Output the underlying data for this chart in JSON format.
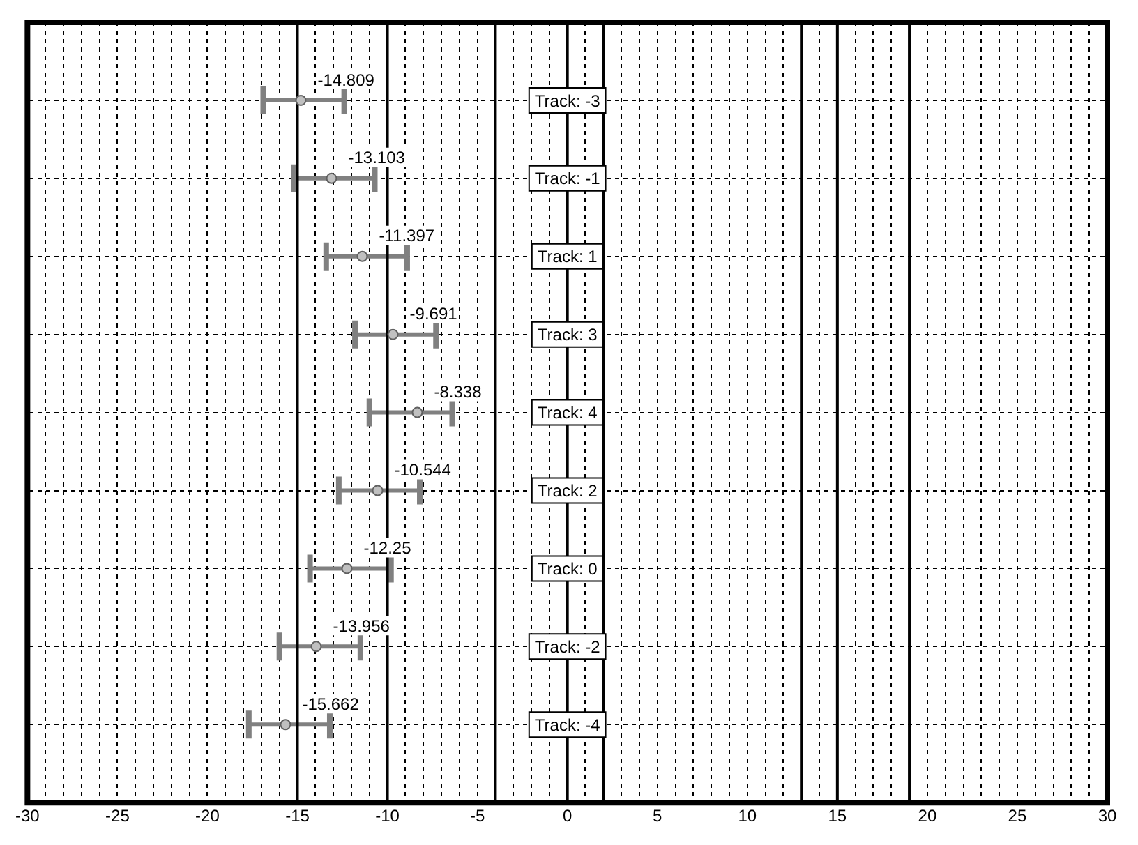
{
  "chart_data": {
    "type": "scatter",
    "orientation": "horizontal",
    "categories": [
      "Track: -3",
      "Track: -1",
      "Track: 1",
      "Track: 3",
      "Track: 4",
      "Track: 2",
      "Track: 0",
      "Track: -2",
      "Track: -4"
    ],
    "values": [
      -14.809,
      -13.103,
      -11.397,
      -9.691,
      -8.338,
      -10.544,
      -12.25,
      -13.956,
      -15.662
    ],
    "errors": [
      [
        -16.9,
        -12.4
      ],
      [
        -15.2,
        -10.7
      ],
      [
        -13.4,
        -8.9
      ],
      [
        -11.8,
        -7.3
      ],
      [
        -11.0,
        -6.4
      ],
      [
        -12.7,
        -8.2
      ],
      [
        -14.3,
        -9.8
      ],
      [
        -16.0,
        -11.5
      ],
      [
        -17.7,
        -13.2
      ]
    ],
    "color": "#c0c0c0",
    "marker": "circle",
    "data_labels": true,
    "grid": true,
    "legend": false,
    "xlim": [
      -30,
      30
    ],
    "xticks": [
      -30,
      {
        "value": -29,
        "label": null
      },
      {
        "value": -28,
        "label": null
      },
      {
        "value": -27,
        "label": null
      },
      {
        "value": -26,
        "label": null
      },
      -25,
      {
        "value": -24,
        "label": null
      },
      {
        "value": -23,
        "label": null
      },
      {
        "value": -22,
        "label": null
      },
      {
        "value": -21,
        "label": null
      },
      -20,
      {
        "value": -19,
        "label": null
      },
      {
        "value": -18,
        "label": null
      },
      {
        "value": -17,
        "label": null
      },
      {
        "value": -16,
        "label": null
      },
      -15,
      {
        "value": -14,
        "label": null
      },
      {
        "value": -13,
        "label": null
      },
      {
        "value": -12,
        "label": null
      },
      {
        "value": -11,
        "label": null
      },
      -10,
      {
        "value": -9,
        "label": null
      },
      {
        "value": -8,
        "label": null
      },
      {
        "value": -7,
        "label": null
      },
      {
        "value": -6,
        "label": null
      },
      -5,
      {
        "value": -4,
        "label": null
      },
      {
        "value": -3,
        "label": null
      },
      {
        "value": -2,
        "label": null
      },
      {
        "value": -1,
        "label": null
      },
      0,
      {
        "value": 1,
        "label": null
      },
      {
        "value": 2,
        "label": null
      },
      {
        "value": 3,
        "label": null
      },
      {
        "value": 4,
        "label": null
      },
      5,
      {
        "value": 6,
        "label": null
      },
      {
        "value": 7,
        "label": null
      },
      {
        "value": 8,
        "label": null
      },
      {
        "value": 9,
        "label": null
      },
      10,
      {
        "value": 11,
        "label": null
      },
      {
        "value": 12,
        "label": null
      },
      {
        "value": 13,
        "label": null
      },
      {
        "value": 14,
        "label": null
      },
      15,
      {
        "value": 16,
        "label": null
      },
      {
        "value": 17,
        "label": null
      },
      {
        "value": 18,
        "label": null
      },
      {
        "value": 19,
        "label": null
      },
      20,
      {
        "value": 21,
        "label": null
      },
      {
        "value": 22,
        "label": null
      },
      {
        "value": 23,
        "label": null
      },
      {
        "value": 24,
        "label": null
      },
      25,
      {
        "value": 26,
        "label": null
      },
      {
        "value": 27,
        "label": null
      },
      {
        "value": 28,
        "label": null
      },
      {
        "value": 29,
        "label": null
      },
      30
    ],
    "ref_lines": [
      {
        "axis": "x",
        "value": -15,
        "color": "#000000"
      },
      {
        "axis": "x",
        "value": 0,
        "color": "#000000"
      },
      {
        "axis": "x",
        "value": 15,
        "color": "#000000"
      },
      {
        "axis": "x",
        "value": -10,
        "color": "#000000"
      },
      {
        "axis": "x",
        "value": -4,
        "color": "#000000"
      },
      {
        "axis": "x",
        "value": 2,
        "color": "#000000"
      },
      {
        "axis": "x",
        "value": 13,
        "color": "#000000"
      },
      {
        "axis": "x",
        "value": 19,
        "color": "#000000"
      }
    ]
  }
}
